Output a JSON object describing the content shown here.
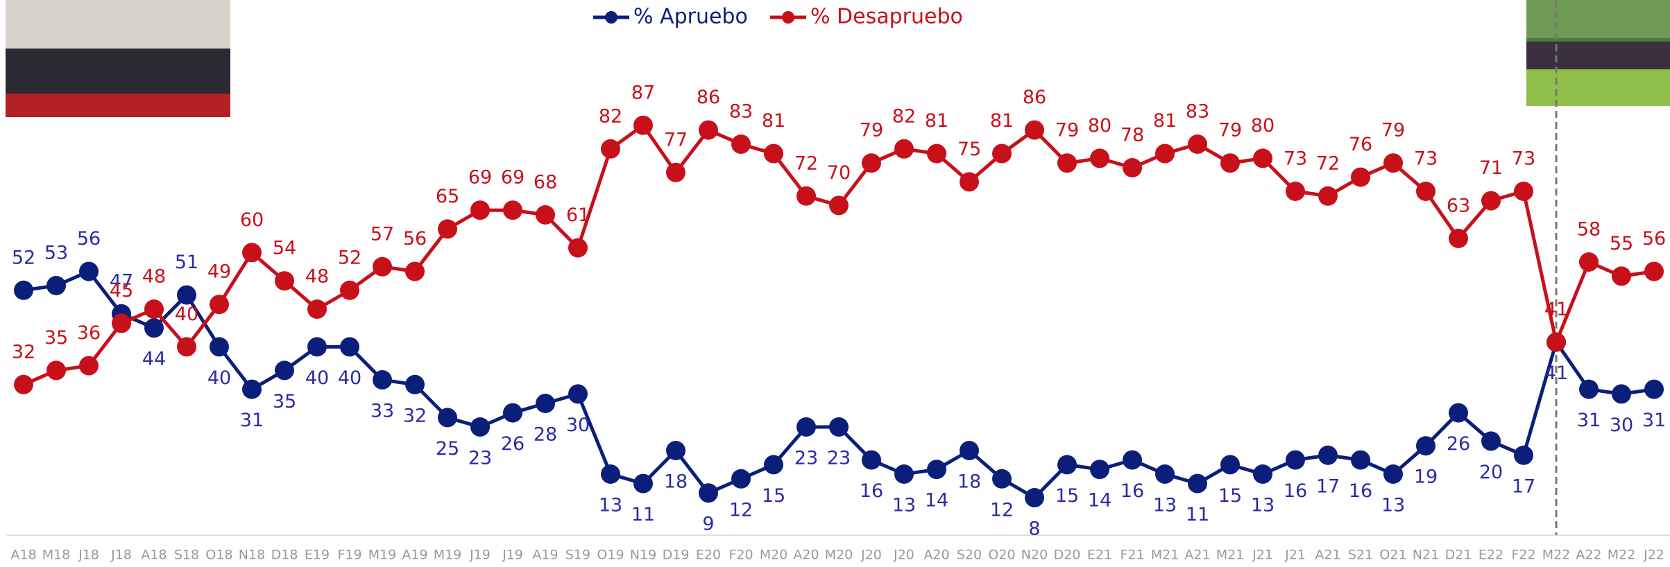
{
  "chart_data": {
    "type": "line",
    "categories": [
      "A18",
      "M18",
      "J18",
      "J18",
      "A18",
      "S18",
      "O18",
      "N18",
      "D18",
      "E19",
      "F19",
      "M19",
      "A19",
      "M19",
      "J19",
      "J19",
      "A19",
      "S19",
      "O19",
      "N19",
      "D19",
      "E20",
      "F20",
      "M20",
      "A20",
      "M20",
      "J20",
      "J20",
      "A20",
      "S20",
      "O20",
      "N20",
      "D20",
      "E21",
      "F21",
      "M21",
      "A21",
      "M21",
      "J21",
      "J21",
      "A21",
      "S21",
      "O21",
      "N21",
      "D21",
      "E22",
      "F22",
      "M22",
      "A22",
      "M22",
      "J22"
    ],
    "series": [
      {
        "name": "% Apruebo",
        "color": "#0b1f7a",
        "values": [
          52,
          53,
          56,
          47,
          44,
          51,
          40,
          31,
          35,
          40,
          40,
          33,
          32,
          25,
          23,
          26,
          28,
          30,
          13,
          11,
          18,
          9,
          12,
          15,
          23,
          23,
          16,
          13,
          14,
          18,
          12,
          8,
          15,
          14,
          16,
          13,
          11,
          15,
          13,
          16,
          17,
          16,
          13,
          19,
          26,
          20,
          17,
          41,
          31,
          30,
          31
        ]
      },
      {
        "name": "% Desapruebo",
        "color": "#c8101a",
        "values": [
          32,
          35,
          36,
          45,
          48,
          40,
          49,
          60,
          54,
          48,
          52,
          57,
          56,
          65,
          69,
          69,
          68,
          61,
          82,
          87,
          77,
          86,
          83,
          81,
          72,
          70,
          79,
          82,
          81,
          75,
          81,
          86,
          79,
          80,
          78,
          81,
          83,
          79,
          80,
          73,
          72,
          76,
          79,
          73,
          63,
          71,
          73,
          41,
          58,
          55,
          56
        ]
      }
    ],
    "legend": "top"
  }
}
